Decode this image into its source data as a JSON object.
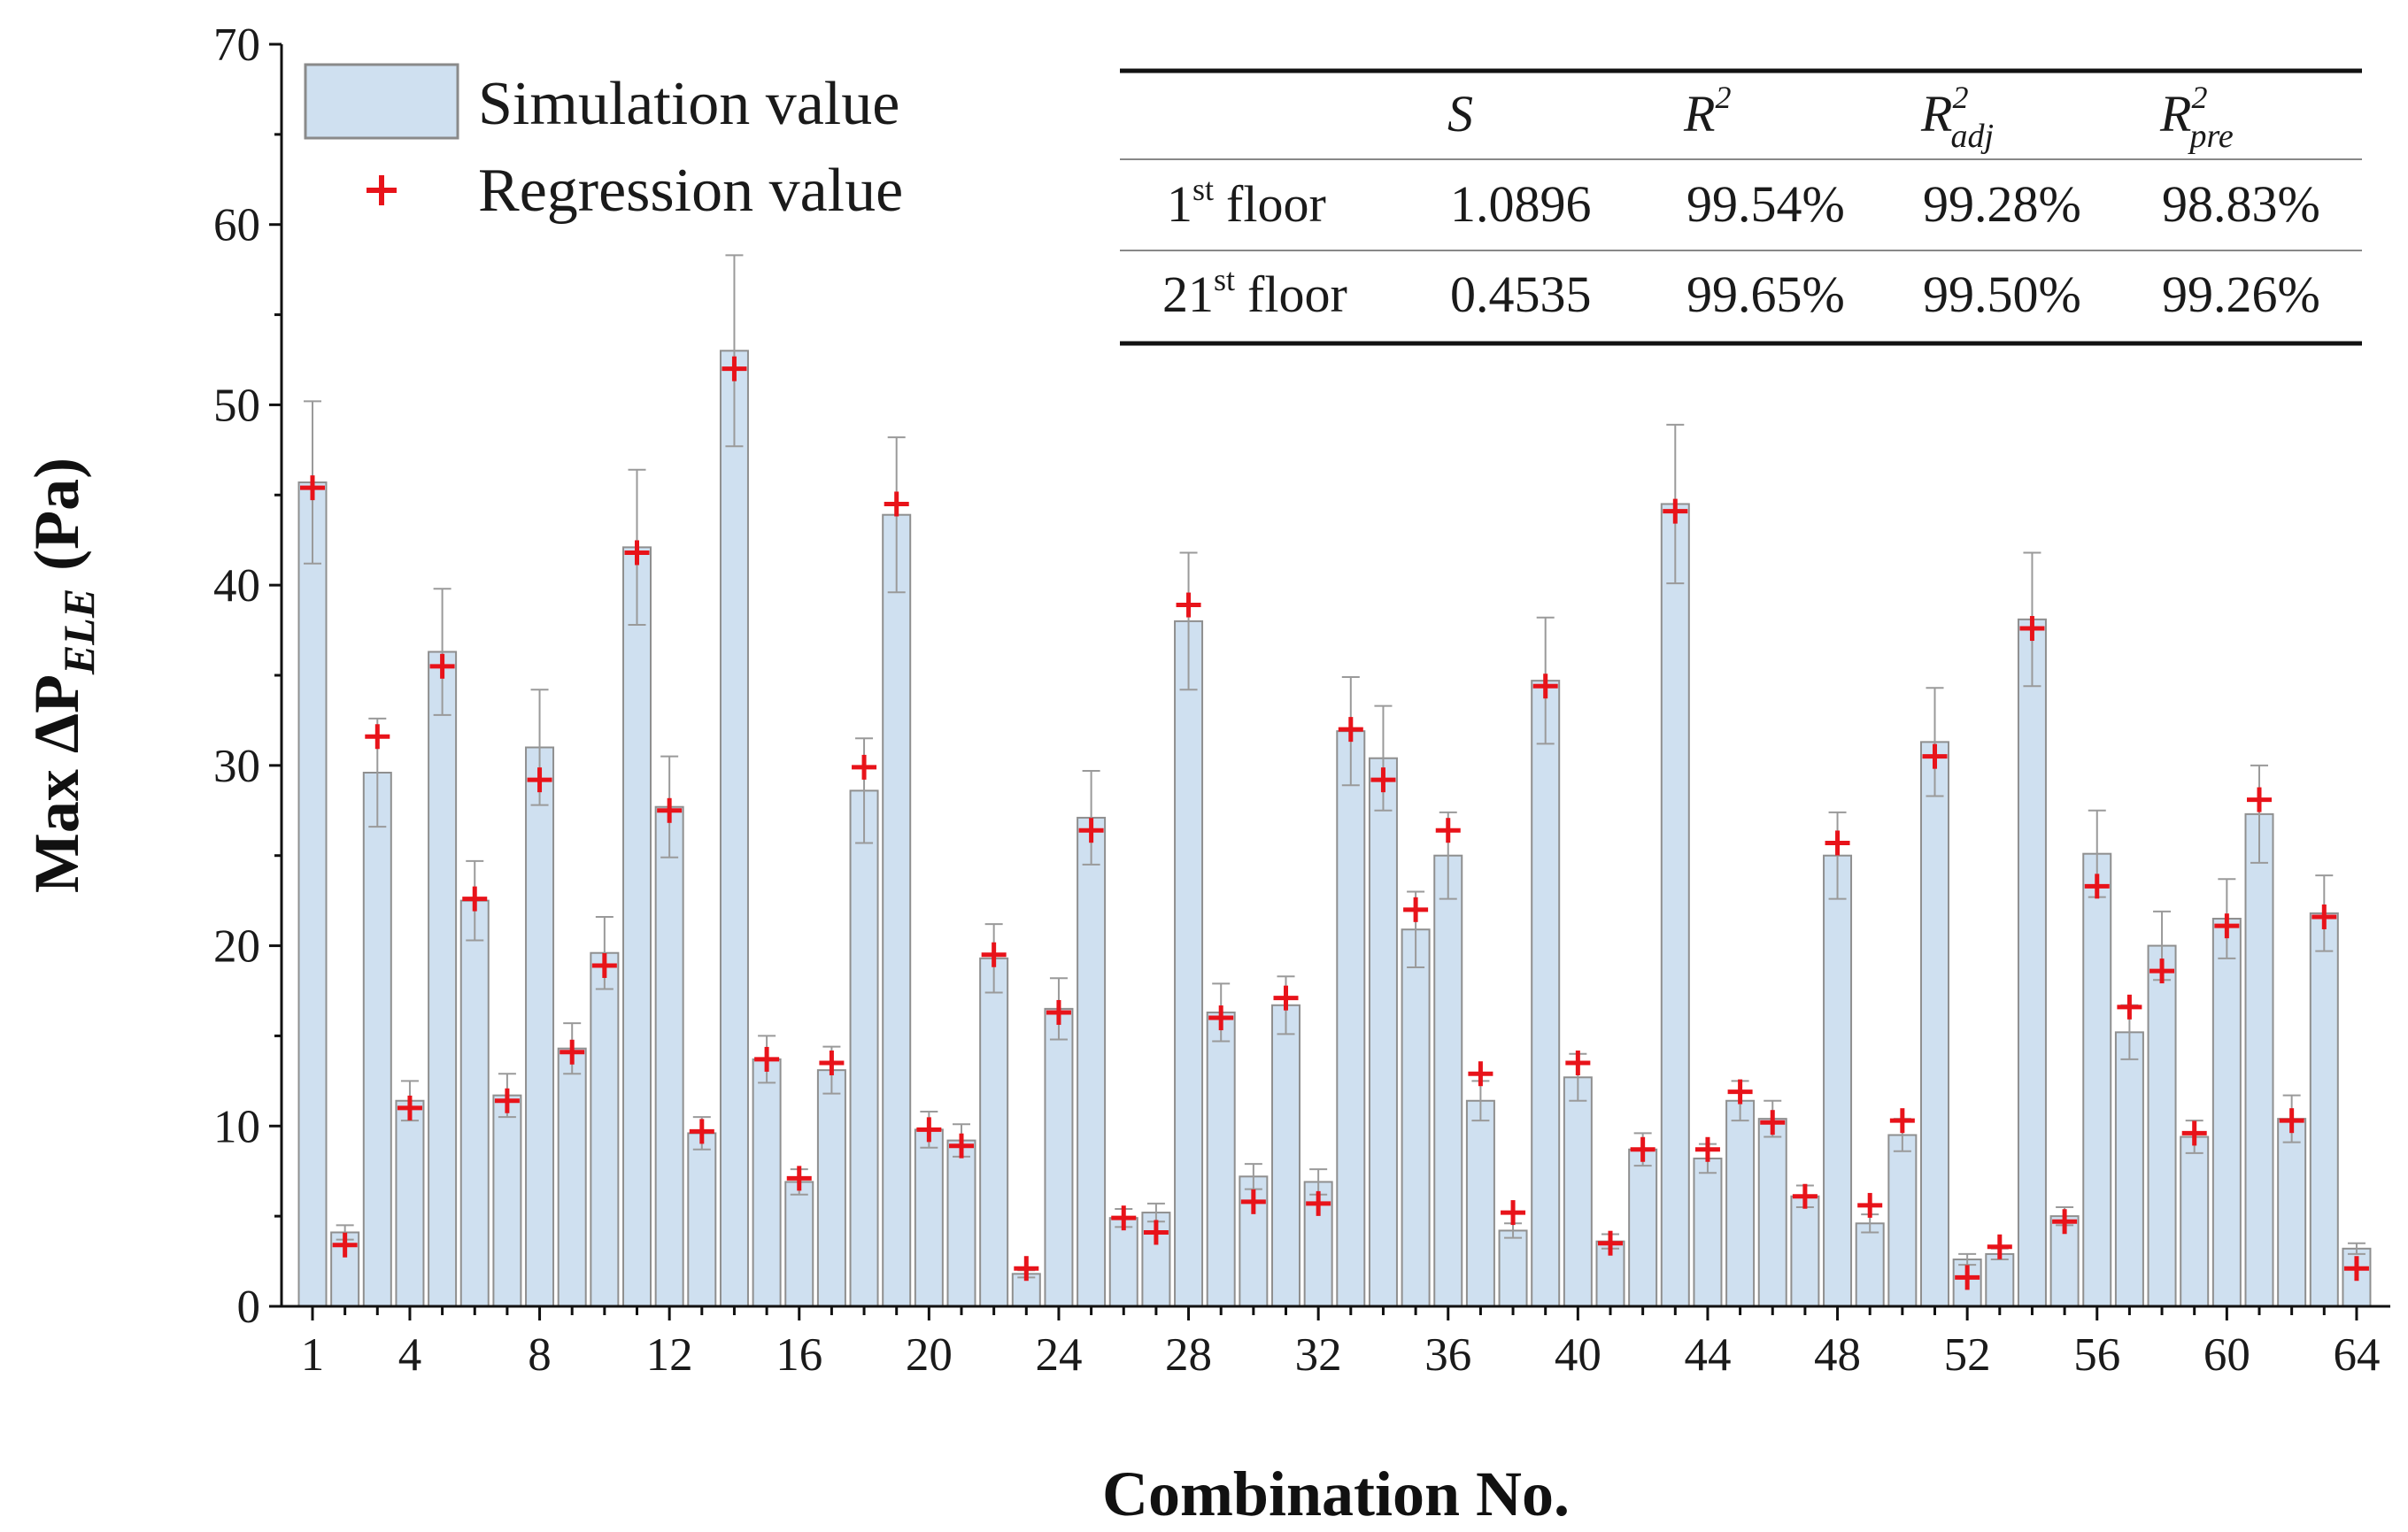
{
  "chart_data": {
    "type": "bar",
    "xlabel": "Combination No.",
    "ylabel": "Max ΔP",
    "ylabel_subscript": "ELE",
    "ylabel_unit": "(Pa)",
    "ylim": [
      0,
      70
    ],
    "yticks": [
      0,
      10,
      20,
      30,
      40,
      50,
      60,
      70
    ],
    "xticks": [
      1,
      4,
      8,
      12,
      16,
      20,
      24,
      28,
      32,
      36,
      40,
      44,
      48,
      52,
      56,
      60,
      64
    ],
    "categories": [
      1,
      2,
      3,
      4,
      5,
      6,
      7,
      8,
      9,
      10,
      11,
      12,
      13,
      14,
      15,
      16,
      17,
      18,
      19,
      20,
      21,
      22,
      23,
      24,
      25,
      26,
      27,
      28,
      29,
      30,
      31,
      32,
      33,
      34,
      35,
      36,
      37,
      38,
      39,
      40,
      41,
      42,
      43,
      44,
      45,
      46,
      47,
      48,
      49,
      50,
      51,
      52,
      53,
      54,
      55,
      56,
      57,
      58,
      59,
      60,
      61,
      62,
      63,
      64
    ],
    "series": [
      {
        "name": "Simulation value",
        "color": "#cfe0f0",
        "values": [
          45.7,
          4.1,
          29.6,
          11.4,
          36.3,
          22.5,
          11.7,
          31.0,
          14.3,
          19.6,
          42.1,
          27.7,
          9.6,
          53.0,
          13.7,
          6.9,
          13.1,
          28.6,
          43.9,
          9.8,
          9.2,
          19.3,
          1.8,
          16.5,
          27.1,
          4.9,
          5.2,
          38.0,
          16.3,
          7.2,
          16.7,
          6.9,
          31.9,
          30.4,
          20.9,
          25.0,
          11.4,
          4.2,
          34.7,
          12.7,
          3.6,
          8.7,
          44.5,
          8.2,
          11.4,
          10.4,
          6.1,
          25.0,
          4.6,
          9.5,
          31.3,
          2.6,
          2.9,
          38.1,
          5.0,
          25.1,
          15.2,
          20.0,
          9.4,
          21.5,
          27.3,
          10.4,
          21.8,
          3.2
        ],
        "error": [
          4.5,
          0.4,
          3.0,
          1.1,
          3.5,
          2.2,
          1.2,
          3.2,
          1.4,
          2.0,
          4.3,
          2.8,
          0.9,
          5.3,
          1.3,
          0.7,
          1.3,
          2.9,
          4.3,
          1.0,
          0.9,
          1.9,
          0.2,
          1.7,
          2.6,
          0.5,
          0.5,
          3.8,
          1.6,
          0.7,
          1.6,
          0.7,
          3.0,
          2.9,
          2.1,
          2.4,
          1.1,
          0.4,
          3.5,
          1.3,
          0.4,
          0.9,
          4.4,
          0.8,
          1.1,
          1.0,
          0.6,
          2.4,
          0.5,
          0.9,
          3.0,
          0.3,
          0.3,
          3.7,
          0.5,
          2.4,
          1.5,
          1.9,
          0.9,
          2.2,
          2.7,
          1.3,
          2.1,
          0.3
        ]
      },
      {
        "name": "Regression value",
        "color": "#e8131a",
        "values": [
          45.4,
          3.4,
          31.6,
          11.0,
          35.5,
          22.6,
          11.4,
          29.2,
          14.1,
          18.9,
          41.8,
          27.5,
          9.7,
          52.0,
          13.7,
          7.1,
          13.5,
          29.9,
          44.5,
          9.8,
          8.9,
          19.5,
          2.1,
          16.3,
          26.4,
          4.9,
          4.1,
          38.9,
          16.0,
          5.8,
          17.1,
          5.7,
          32.0,
          29.2,
          22.0,
          26.4,
          12.9,
          5.2,
          34.4,
          13.5,
          3.5,
          8.7,
          44.1,
          8.7,
          11.9,
          10.2,
          6.1,
          25.7,
          5.6,
          10.3,
          30.5,
          1.6,
          3.3,
          37.6,
          4.7,
          23.3,
          16.6,
          18.6,
          9.6,
          21.1,
          28.1,
          10.3,
          21.6,
          2.1
        ]
      }
    ],
    "legend": {
      "position": "top-left",
      "entries": [
        "Simulation value",
        "Regression value"
      ]
    },
    "stats_table": {
      "headers": [
        "S",
        "R",
        "R",
        "R"
      ],
      "header_superscripts": [
        "",
        "2",
        "2",
        "2"
      ],
      "header_subscripts": [
        "",
        "",
        "adj",
        "pre"
      ],
      "rows": [
        {
          "floor_num": "1",
          "floor_sup": "st",
          "floor_word": "floor",
          "values": [
            "1.0896",
            "99.54%",
            "99.28%",
            "98.83%"
          ]
        },
        {
          "floor_num": "21",
          "floor_sup": "st",
          "floor_word": "floor",
          "values": [
            "0.4535",
            "99.65%",
            "99.50%",
            "99.26%"
          ]
        }
      ]
    }
  }
}
